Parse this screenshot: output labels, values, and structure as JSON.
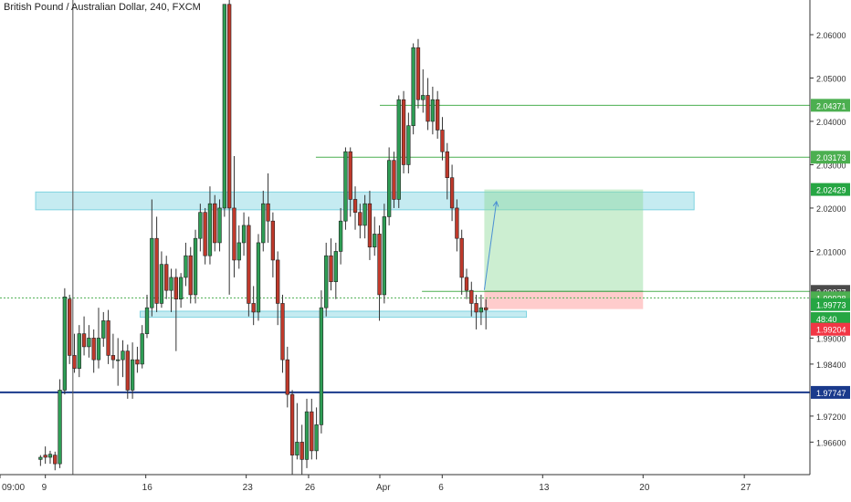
{
  "chart_data": {
    "type": "candlestick",
    "title": "British Pound / Australian Dollar, 240, FXCM",
    "ylim": [
      1.9585,
      2.068
    ],
    "y_ticks": [
      {
        "value": 2.06,
        "label": "2.06000"
      },
      {
        "value": 2.05,
        "label": "2.05000"
      },
      {
        "value": 2.04,
        "label": "2.04000"
      },
      {
        "value": 2.03,
        "label": "2.03000"
      },
      {
        "value": 2.02,
        "label": "2.02000"
      },
      {
        "value": 2.01,
        "label": "2.01000"
      },
      {
        "value": 1.99,
        "label": "1.99000"
      },
      {
        "value": 1.984,
        "label": "1.98400"
      },
      {
        "value": 1.972,
        "label": "1.97200"
      },
      {
        "value": 1.966,
        "label": "1.96600"
      }
    ],
    "x_ticks": [
      {
        "label": "09:00",
        "pos": 0.0
      },
      {
        "label": "9",
        "pos": 0.056
      },
      {
        "label": "16",
        "pos": 0.18
      },
      {
        "label": "23",
        "pos": 0.304
      },
      {
        "label": "26",
        "pos": 0.381
      },
      {
        "label": "Apr",
        "pos": 0.469
      },
      {
        "label": "6",
        "pos": 0.546
      },
      {
        "label": "13",
        "pos": 0.67
      },
      {
        "label": "20",
        "pos": 0.794
      },
      {
        "label": "27",
        "pos": 0.919
      }
    ],
    "price_labels": [
      {
        "value": 2.04371,
        "label": "2.04371",
        "color": "#4caf50"
      },
      {
        "value": 2.03173,
        "label": "2.03173",
        "color": "#4caf50"
      },
      {
        "value": 2.02429,
        "label": "2.02429",
        "color": "#26a643"
      },
      {
        "value": 2.00077,
        "label": "2.00077",
        "color": "#4a4a4a"
      },
      {
        "value": 1.99928,
        "label": "1.99928",
        "color": "#4caf50"
      },
      {
        "value": 1.99773,
        "label": "1.99773",
        "color": "#26a643"
      },
      {
        "value": 1.9945,
        "label": "48:40",
        "color": "#26a643"
      },
      {
        "value": 1.99204,
        "label": "1.99204",
        "color": "#f23645"
      },
      {
        "value": 1.97747,
        "label": "1.97747",
        "color": "#1a3a8c"
      }
    ],
    "horizontal_lines": [
      {
        "value": 2.04371,
        "x_start": 0.469,
        "x_end": 1.0,
        "color": "#4caf50"
      },
      {
        "value": 2.03173,
        "x_start": 0.39,
        "x_end": 1.0,
        "color": "#4caf50"
      },
      {
        "value": 2.00077,
        "x_start": 0.521,
        "x_end": 1.0,
        "color": "#4caf50"
      },
      {
        "value": 1.99928,
        "x_start": 0.0,
        "x_end": 1.0,
        "color": "#4caf50",
        "dashed": true
      },
      {
        "value": 1.97747,
        "x_start": 0.0,
        "x_end": 1.0,
        "color": "#1a3a8c",
        "width": 2
      }
    ],
    "zones": [
      {
        "y_top": 2.0237,
        "y_bottom": 2.0196,
        "x_start": 0.044,
        "x_end": 0.857,
        "color": "#7fd3e0"
      },
      {
        "y_top": 1.9962,
        "y_bottom": 1.9948,
        "x_start": 0.173,
        "x_end": 0.65,
        "color": "#7fd3e0"
      }
    ],
    "position": {
      "x_start": 0.598,
      "x_end": 0.794,
      "target": 2.02429,
      "entry": 2.00077,
      "stop": 1.9967
    },
    "projection": {
      "x0": 0.598,
      "y0": 2.0011,
      "x1": 0.613,
      "y1": 2.0215
    },
    "candles": [
      [
        1.962,
        1.9625,
        1.9605,
        1.963
      ],
      [
        1.963,
        1.9625,
        1.961,
        1.965
      ],
      [
        1.9625,
        1.9632,
        1.961,
        1.964
      ],
      [
        1.963,
        1.961,
        1.9595,
        1.9638
      ],
      [
        1.961,
        1.978,
        1.96,
        1.9805
      ],
      [
        1.978,
        1.9995,
        1.977,
        2.0015
      ],
      [
        1.999,
        1.986,
        1.984,
        2.0
      ],
      [
        1.986,
        1.983,
        1.982,
        1.991
      ],
      [
        1.983,
        1.991,
        1.981,
        1.993
      ],
      [
        1.991,
        1.988,
        1.986,
        1.995
      ],
      [
        1.988,
        1.99,
        1.9855,
        1.993
      ],
      [
        1.99,
        1.985,
        1.982,
        1.992
      ],
      [
        1.985,
        1.99,
        1.983,
        1.997
      ],
      [
        1.99,
        1.994,
        1.988,
        1.996
      ],
      [
        1.994,
        1.986,
        1.984,
        1.9965
      ],
      [
        1.986,
        1.985,
        1.983,
        1.991
      ],
      [
        1.985,
        1.985,
        1.979,
        1.99
      ],
      [
        1.985,
        1.987,
        1.981,
        1.9895
      ],
      [
        1.987,
        1.978,
        1.976,
        1.9885
      ],
      [
        1.978,
        1.985,
        1.976,
        1.989
      ],
      [
        1.985,
        1.984,
        1.982,
        1.988
      ],
      [
        1.984,
        1.991,
        1.983,
        1.993
      ],
      [
        1.991,
        1.997,
        1.99,
        2.0
      ],
      [
        1.997,
        2.013,
        1.995,
        2.022
      ],
      [
        2.013,
        1.998,
        1.996,
        2.018
      ],
      [
        1.998,
        2.007,
        1.997,
        2.01
      ],
      [
        2.007,
        2.001,
        1.999,
        2.009
      ],
      [
        2.001,
        2.004,
        1.996,
        2.006
      ],
      [
        2.004,
        1.999,
        1.987,
        2.006
      ],
      [
        1.999,
        2.004,
        1.997,
        2.005
      ],
      [
        2.004,
        2.009,
        2.002,
        2.012
      ],
      [
        2.009,
        2.0,
        1.998,
        2.011
      ],
      [
        2.0,
        2.013,
        1.998,
        2.015
      ],
      [
        2.013,
        2.019,
        2.01,
        2.021
      ],
      [
        2.019,
        2.009,
        2.007,
        2.02
      ],
      [
        2.009,
        2.021,
        2.007,
        2.025
      ],
      [
        2.021,
        2.012,
        2.01,
        2.023
      ],
      [
        2.012,
        2.02,
        2.01,
        2.022
      ],
      [
        2.02,
        2.067,
        2.018,
        2.067
      ],
      [
        2.067,
        2.02,
        2.0,
        2.068
      ],
      [
        2.02,
        2.008,
        2.004,
        2.032
      ],
      [
        2.008,
        2.012,
        2.006,
        2.016
      ],
      [
        2.012,
        2.016,
        2.009,
        2.019
      ],
      [
        2.016,
        1.998,
        1.995,
        2.018
      ],
      [
        1.998,
        1.996,
        1.993,
        2.002
      ],
      [
        1.996,
        2.012,
        1.994,
        2.014
      ],
      [
        2.012,
        2.021,
        2.01,
        2.024
      ],
      [
        2.021,
        2.017,
        2.012,
        2.028
      ],
      [
        2.017,
        2.008,
        2.004,
        2.019
      ],
      [
        2.008,
        1.998,
        1.993,
        2.01
      ],
      [
        1.998,
        1.985,
        1.982,
        2.0
      ],
      [
        1.985,
        1.977,
        1.974,
        1.988
      ],
      [
        1.977,
        1.963,
        1.958,
        1.978
      ],
      [
        1.963,
        1.966,
        1.962,
        1.975
      ],
      [
        1.966,
        1.962,
        1.958,
        1.97
      ],
      [
        1.962,
        1.973,
        1.96,
        1.976
      ],
      [
        1.973,
        1.964,
        1.962,
        1.976
      ],
      [
        1.964,
        1.97,
        1.962,
        1.974
      ],
      [
        1.97,
        1.997,
        1.968,
        2.001
      ],
      [
        1.997,
        2.009,
        1.995,
        2.012
      ],
      [
        2.009,
        2.003,
        2.001,
        2.013
      ],
      [
        2.003,
        2.01,
        1.999,
        2.012
      ],
      [
        2.01,
        2.017,
        2.007,
        2.02
      ],
      [
        2.017,
        2.033,
        2.015,
        2.034
      ],
      [
        2.033,
        2.022,
        2.018,
        2.034
      ],
      [
        2.022,
        2.019,
        2.015,
        2.025
      ],
      [
        2.019,
        2.016,
        2.013,
        2.021
      ],
      [
        2.016,
        2.021,
        2.013,
        2.023
      ],
      [
        2.021,
        2.011,
        2.008,
        2.024
      ],
      [
        2.011,
        2.014,
        2.009,
        2.018
      ],
      [
        2.014,
        2.0,
        1.994,
        2.016
      ],
      [
        2.0,
        2.018,
        1.998,
        2.021
      ],
      [
        2.018,
        2.031,
        2.016,
        2.034
      ],
      [
        2.031,
        2.022,
        2.02,
        2.033
      ],
      [
        2.022,
        2.045,
        2.02,
        2.046
      ],
      [
        2.045,
        2.03,
        2.028,
        2.047
      ],
      [
        2.03,
        2.039,
        2.028,
        2.042
      ],
      [
        2.039,
        2.057,
        2.037,
        2.058
      ],
      [
        2.057,
        2.045,
        2.043,
        2.059
      ],
      [
        2.045,
        2.046,
        2.042,
        2.052
      ],
      [
        2.046,
        2.04,
        2.038,
        2.05
      ],
      [
        2.04,
        2.045,
        2.037,
        2.048
      ],
      [
        2.045,
        2.038,
        2.036,
        2.047
      ],
      [
        2.038,
        2.033,
        2.031,
        2.041
      ],
      [
        2.033,
        2.027,
        2.022,
        2.035
      ],
      [
        2.027,
        2.02,
        2.017,
        2.03
      ],
      [
        2.02,
        2.013,
        2.01,
        2.022
      ],
      [
        2.013,
        2.004,
        2.0,
        2.015
      ],
      [
        2.004,
        2.001,
        1.999,
        2.006
      ],
      [
        2.001,
        1.998,
        1.995,
        2.003
      ],
      [
        1.998,
        1.996,
        1.992,
        2.0
      ],
      [
        1.996,
        1.997,
        1.993,
        2.0
      ],
      [
        1.997,
        1.9965,
        1.992,
        1.999
      ]
    ]
  }
}
